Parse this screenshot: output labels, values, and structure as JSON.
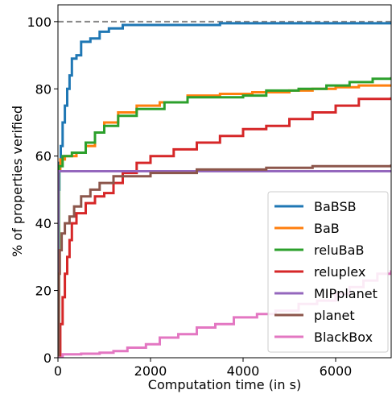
{
  "chart_data": {
    "type": "line",
    "xlabel": "Computation time (in s)",
    "ylabel": "% of properties verified",
    "xlim": [
      0,
      7200
    ],
    "ylim": [
      0,
      105
    ],
    "xticks": [
      0,
      2000,
      4000,
      6000
    ],
    "yticks": [
      0,
      20,
      40,
      60,
      80,
      100
    ],
    "xtick_labels": [
      "0",
      "2000",
      "4000",
      "6000"
    ],
    "ytick_labels": [
      "0",
      "20",
      "40",
      "60",
      "80",
      "100"
    ],
    "reference_line": {
      "y": 100,
      "style": "dashed",
      "color": "#888888"
    },
    "legend_position": "lower-right",
    "grid": false,
    "series": [
      {
        "name": "BaBSB",
        "color": "#1f77b4",
        "points": [
          [
            0,
            0
          ],
          [
            5,
            30
          ],
          [
            15,
            50
          ],
          [
            30,
            58
          ],
          [
            60,
            63
          ],
          [
            100,
            70
          ],
          [
            150,
            75
          ],
          [
            200,
            80
          ],
          [
            250,
            84
          ],
          [
            300,
            89
          ],
          [
            400,
            90
          ],
          [
            500,
            94
          ],
          [
            700,
            95
          ],
          [
            900,
            97
          ],
          [
            1100,
            98
          ],
          [
            1400,
            99
          ],
          [
            2500,
            99
          ],
          [
            3500,
            99.5
          ],
          [
            7200,
            99.5
          ]
        ]
      },
      {
        "name": "BaB",
        "color": "#ff7f0e",
        "points": [
          [
            0,
            0
          ],
          [
            10,
            56
          ],
          [
            50,
            59
          ],
          [
            150,
            60
          ],
          [
            400,
            61
          ],
          [
            600,
            63
          ],
          [
            800,
            67
          ],
          [
            1000,
            70
          ],
          [
            1300,
            73
          ],
          [
            1700,
            75
          ],
          [
            2200,
            76
          ],
          [
            2800,
            78
          ],
          [
            3500,
            78.5
          ],
          [
            4200,
            79
          ],
          [
            5000,
            79.5
          ],
          [
            5500,
            80
          ],
          [
            6000,
            80.5
          ],
          [
            6500,
            81
          ],
          [
            7200,
            81
          ]
        ]
      },
      {
        "name": "reluBaB",
        "color": "#2ca02c",
        "points": [
          [
            0,
            0
          ],
          [
            20,
            57
          ],
          [
            100,
            60
          ],
          [
            300,
            61
          ],
          [
            600,
            64
          ],
          [
            800,
            67
          ],
          [
            1000,
            69
          ],
          [
            1300,
            72
          ],
          [
            1700,
            74
          ],
          [
            2300,
            76
          ],
          [
            2800,
            77.5
          ],
          [
            4000,
            78
          ],
          [
            4500,
            79.5
          ],
          [
            5200,
            80
          ],
          [
            5800,
            81
          ],
          [
            6300,
            82
          ],
          [
            6800,
            83
          ],
          [
            7200,
            83.5
          ]
        ]
      },
      {
        "name": "reluplex",
        "color": "#d62728",
        "points": [
          [
            0,
            0
          ],
          [
            50,
            10
          ],
          [
            100,
            18
          ],
          [
            150,
            25
          ],
          [
            200,
            30
          ],
          [
            250,
            35
          ],
          [
            300,
            40
          ],
          [
            400,
            43
          ],
          [
            600,
            46
          ],
          [
            800,
            48
          ],
          [
            1000,
            49
          ],
          [
            1200,
            52
          ],
          [
            1400,
            55
          ],
          [
            1700,
            58
          ],
          [
            2000,
            60
          ],
          [
            2500,
            62
          ],
          [
            3000,
            64
          ],
          [
            3500,
            66
          ],
          [
            4000,
            68
          ],
          [
            4500,
            69
          ],
          [
            5000,
            71
          ],
          [
            5500,
            73
          ],
          [
            6000,
            75
          ],
          [
            6500,
            77
          ],
          [
            7200,
            77.5
          ]
        ]
      },
      {
        "name": "MIPplanet",
        "color": "#9467bd",
        "points": [
          [
            0,
            0
          ],
          [
            5,
            40
          ],
          [
            10,
            55.5
          ],
          [
            7200,
            55.5
          ]
        ]
      },
      {
        "name": "planet",
        "color": "#8c564b",
        "points": [
          [
            0,
            0
          ],
          [
            20,
            25
          ],
          [
            40,
            32
          ],
          [
            80,
            37
          ],
          [
            150,
            40
          ],
          [
            250,
            42
          ],
          [
            350,
            45
          ],
          [
            500,
            48
          ],
          [
            700,
            50
          ],
          [
            900,
            52
          ],
          [
            1200,
            54
          ],
          [
            2000,
            55
          ],
          [
            3000,
            56
          ],
          [
            4500,
            56.5
          ],
          [
            5500,
            57
          ],
          [
            7200,
            57.5
          ]
        ]
      },
      {
        "name": "BlackBox",
        "color": "#e377c2",
        "points": [
          [
            0,
            0
          ],
          [
            100,
            1
          ],
          [
            500,
            1.2
          ],
          [
            900,
            1.5
          ],
          [
            1200,
            2
          ],
          [
            1500,
            3
          ],
          [
            1900,
            4
          ],
          [
            2200,
            6
          ],
          [
            2600,
            7
          ],
          [
            3000,
            9
          ],
          [
            3400,
            10
          ],
          [
            3800,
            12
          ],
          [
            4300,
            13
          ],
          [
            4700,
            14
          ],
          [
            5200,
            16
          ],
          [
            5600,
            17
          ],
          [
            6000,
            19
          ],
          [
            6300,
            21
          ],
          [
            6600,
            23
          ],
          [
            6900,
            25
          ],
          [
            7200,
            26
          ]
        ]
      }
    ]
  }
}
